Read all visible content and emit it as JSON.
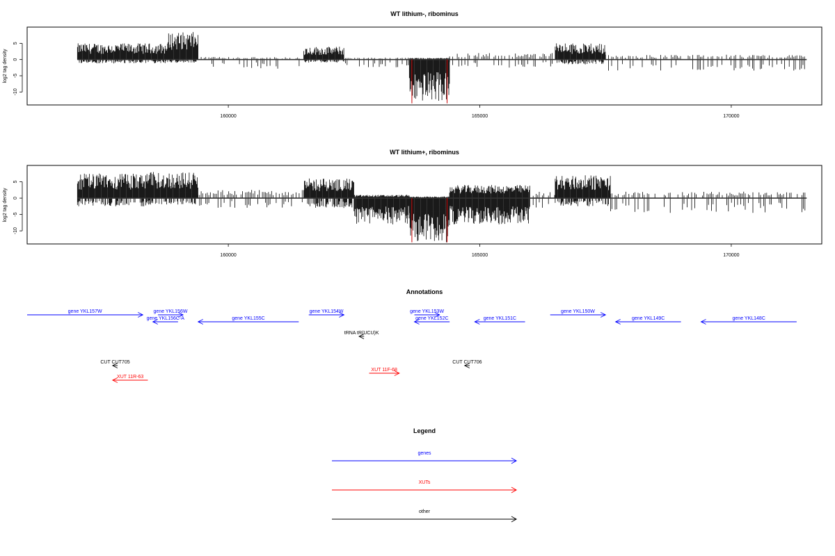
{
  "panels": [
    {
      "title": "WT lithium-, ribominus",
      "ylabel": "log2 tag density",
      "chart_data": {
        "type": "bar",
        "xlim": [
          156000,
          171800
        ],
        "ylim": [
          -14,
          10
        ],
        "xticks": [
          160000,
          165000,
          170000
        ],
        "yticks": [
          5,
          0,
          -5,
          -10
        ],
        "segments": [
          {
            "start": 157000,
            "end": 158800,
            "pos": 5.0,
            "neg": 1.2
          },
          {
            "start": 158800,
            "end": 159400,
            "pos": 8.5,
            "neg": 1.0
          },
          {
            "start": 159400,
            "end": 161500,
            "pos": 0.8,
            "neg": 3.0
          },
          {
            "start": 161500,
            "end": 162300,
            "pos": 4.0,
            "neg": 1.0
          },
          {
            "start": 162300,
            "end": 163600,
            "pos": 0.6,
            "neg": 2.5
          },
          {
            "start": 163600,
            "end": 164400,
            "pos": 0.5,
            "neg": 13.0
          },
          {
            "start": 164400,
            "end": 166500,
            "pos": 2.0,
            "neg": 2.5
          },
          {
            "start": 166500,
            "end": 167500,
            "pos": 5.0,
            "neg": 1.5
          },
          {
            "start": 167500,
            "end": 171500,
            "pos": 1.5,
            "neg": 3.5
          }
        ],
        "highlight": {
          "start": 163650,
          "end": 164350,
          "depth": -13.5
        }
      }
    },
    {
      "title": "WT lithium+, ribominus",
      "ylabel": "log2 tag density",
      "chart_data": {
        "type": "bar",
        "xlim": [
          156000,
          171800
        ],
        "ylim": [
          -14,
          10
        ],
        "xticks": [
          160000,
          165000,
          170000
        ],
        "yticks": [
          5,
          0,
          -5,
          -10
        ],
        "segments": [
          {
            "start": 157000,
            "end": 158400,
            "pos": 7.5,
            "neg": 2.5
          },
          {
            "start": 158400,
            "end": 159400,
            "pos": 8.0,
            "neg": 2.0
          },
          {
            "start": 159400,
            "end": 161500,
            "pos": 2.5,
            "neg": 3.0
          },
          {
            "start": 161500,
            "end": 162500,
            "pos": 6.0,
            "neg": 3.0
          },
          {
            "start": 162500,
            "end": 163600,
            "pos": 1.0,
            "neg": 8.0
          },
          {
            "start": 163600,
            "end": 164400,
            "pos": 0.5,
            "neg": 13.5
          },
          {
            "start": 164400,
            "end": 166000,
            "pos": 4.0,
            "neg": 8.0
          },
          {
            "start": 166000,
            "end": 166500,
            "pos": 2.0,
            "neg": 3.0
          },
          {
            "start": 166500,
            "end": 167600,
            "pos": 7.0,
            "neg": 2.5
          },
          {
            "start": 167600,
            "end": 171500,
            "pos": 2.0,
            "neg": 4.5
          }
        ],
        "highlight": {
          "start": 163650,
          "end": 164350,
          "depth": -13.5
        }
      }
    }
  ],
  "annotations": {
    "title": "Annotations",
    "features": [
      {
        "label": "gene YKL157W",
        "start": 156000,
        "end": 158300,
        "strand": "+",
        "row": 0,
        "type": "gene"
      },
      {
        "label": "gene YKL156W",
        "start": 158600,
        "end": 159100,
        "strand": "+",
        "row": 0,
        "type": "gene"
      },
      {
        "label": "gene YKL156C-A",
        "start": 158500,
        "end": 159000,
        "strand": "-",
        "row": 1,
        "type": "gene"
      },
      {
        "label": "gene YKL155C",
        "start": 159400,
        "end": 161400,
        "strand": "-",
        "row": 1,
        "type": "gene"
      },
      {
        "label": "gene YKL154W",
        "start": 161600,
        "end": 162300,
        "strand": "+",
        "row": 0,
        "type": "gene"
      },
      {
        "label": "gene YKL153W",
        "start": 163700,
        "end": 164200,
        "strand": "+",
        "row": 0,
        "type": "gene"
      },
      {
        "label": "gene YKL152C",
        "start": 163700,
        "end": 164400,
        "strand": "-",
        "row": 1,
        "type": "gene"
      },
      {
        "label": "gene YKL151C",
        "start": 164900,
        "end": 165900,
        "strand": "-",
        "row": 1,
        "type": "gene"
      },
      {
        "label": "gene YKL150W",
        "start": 166400,
        "end": 167500,
        "strand": "+",
        "row": 0,
        "type": "gene"
      },
      {
        "label": "gene YKL149C",
        "start": 167700,
        "end": 169000,
        "strand": "-",
        "row": 1,
        "type": "gene"
      },
      {
        "label": "gene YKL148C",
        "start": 169400,
        "end": 171300,
        "strand": "-",
        "row": 1,
        "type": "gene"
      },
      {
        "label": "tRNA tR(UCU)K",
        "start": 162600,
        "end": 162700,
        "strand": "-",
        "row": 2,
        "type": "other"
      },
      {
        "label": "CUT CUT705",
        "start": 157700,
        "end": 157800,
        "strand": "-",
        "row": 3,
        "type": "other"
      },
      {
        "label": "CUT CUT706",
        "start": 164700,
        "end": 164800,
        "strand": "-",
        "row": 3,
        "type": "other"
      },
      {
        "label": "XUT 11F-68",
        "start": 162800,
        "end": 163400,
        "strand": "+",
        "row": 4,
        "type": "xut"
      },
      {
        "label": "XUT 11R-63",
        "start": 157700,
        "end": 158400,
        "strand": "-",
        "row": 5,
        "type": "xut"
      }
    ]
  },
  "legend": {
    "title": "Legend",
    "items": [
      {
        "label": "genes",
        "color": "#0000ff"
      },
      {
        "label": "XUTs",
        "color": "#ff0000"
      },
      {
        "label": "other",
        "color": "#000000"
      }
    ]
  },
  "colors": {
    "gene": "#0000ff",
    "xut": "#ff0000",
    "other": "#000000",
    "highlight": "#cc0000"
  }
}
